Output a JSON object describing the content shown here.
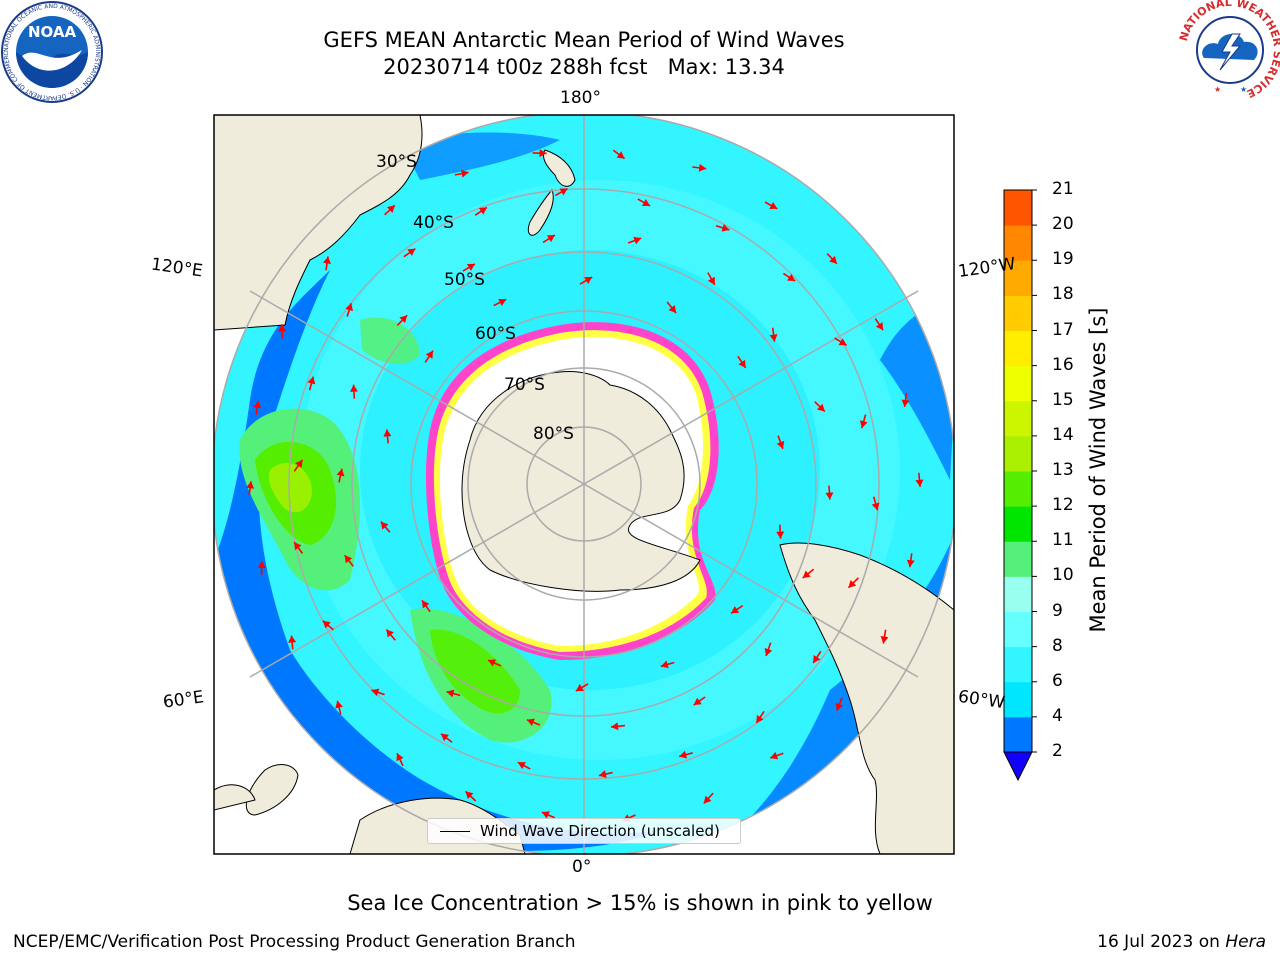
{
  "title": {
    "line1": "GEFS MEAN Antarctic Mean Period of Wind Waves",
    "line2": "20230714 t00z 288h fcst   Max: 13.34"
  },
  "logos": {
    "noaa_text": "NOAA",
    "noaa_ring": "NATIONAL OCEANIC AND ATMOSPHERIC ADMINISTRATION · U.S. DEPARTMENT OF COMMERCE",
    "nws_ring": "NATIONAL WEATHER SERVICE"
  },
  "map": {
    "projection": "south-polar-stereographic",
    "meridian_labels": {
      "top": "180°",
      "bottom": "0°",
      "left_upper": "120°E",
      "left_lower": "60°E",
      "right_upper": "120°W",
      "right_lower": "60°W"
    },
    "parallel_labels": [
      "30°S",
      "40°S",
      "50°S",
      "60°S",
      "70°S",
      "80°S"
    ],
    "legend_label": "Wind Wave Direction (unscaled)",
    "arrow_color": "#ff0000",
    "land_color": "#efecdc",
    "ice_edge_colors": [
      "#ff44cc",
      "#ffff44"
    ]
  },
  "colorbar": {
    "label": "Mean Period of Wind Waves [s]",
    "ticks": [
      "2",
      "4",
      "6",
      "8",
      "9",
      "10",
      "11",
      "12",
      "13",
      "14",
      "15",
      "16",
      "17",
      "18",
      "19",
      "20",
      "21"
    ],
    "colors": [
      "#0077ff",
      "#00e6ff",
      "#33f5ff",
      "#66ffff",
      "#99ffee",
      "#55f07a",
      "#00e600",
      "#55ee00",
      "#aaf000",
      "#ccf500",
      "#eeff00",
      "#ffee00",
      "#ffcc00",
      "#ffaa00",
      "#ff8800",
      "#ff5500",
      "#ff2200",
      "#ff0000"
    ],
    "under_color": "#1100ff"
  },
  "notes": {
    "ice": "Sea Ice Concentration > 15% is shown in pink to yellow",
    "footer_left": "NCEP/EMC/Verification Post Processing Product Generation Branch",
    "footer_date": "16 Jul 2023 on",
    "footer_machine": "Hera"
  }
}
